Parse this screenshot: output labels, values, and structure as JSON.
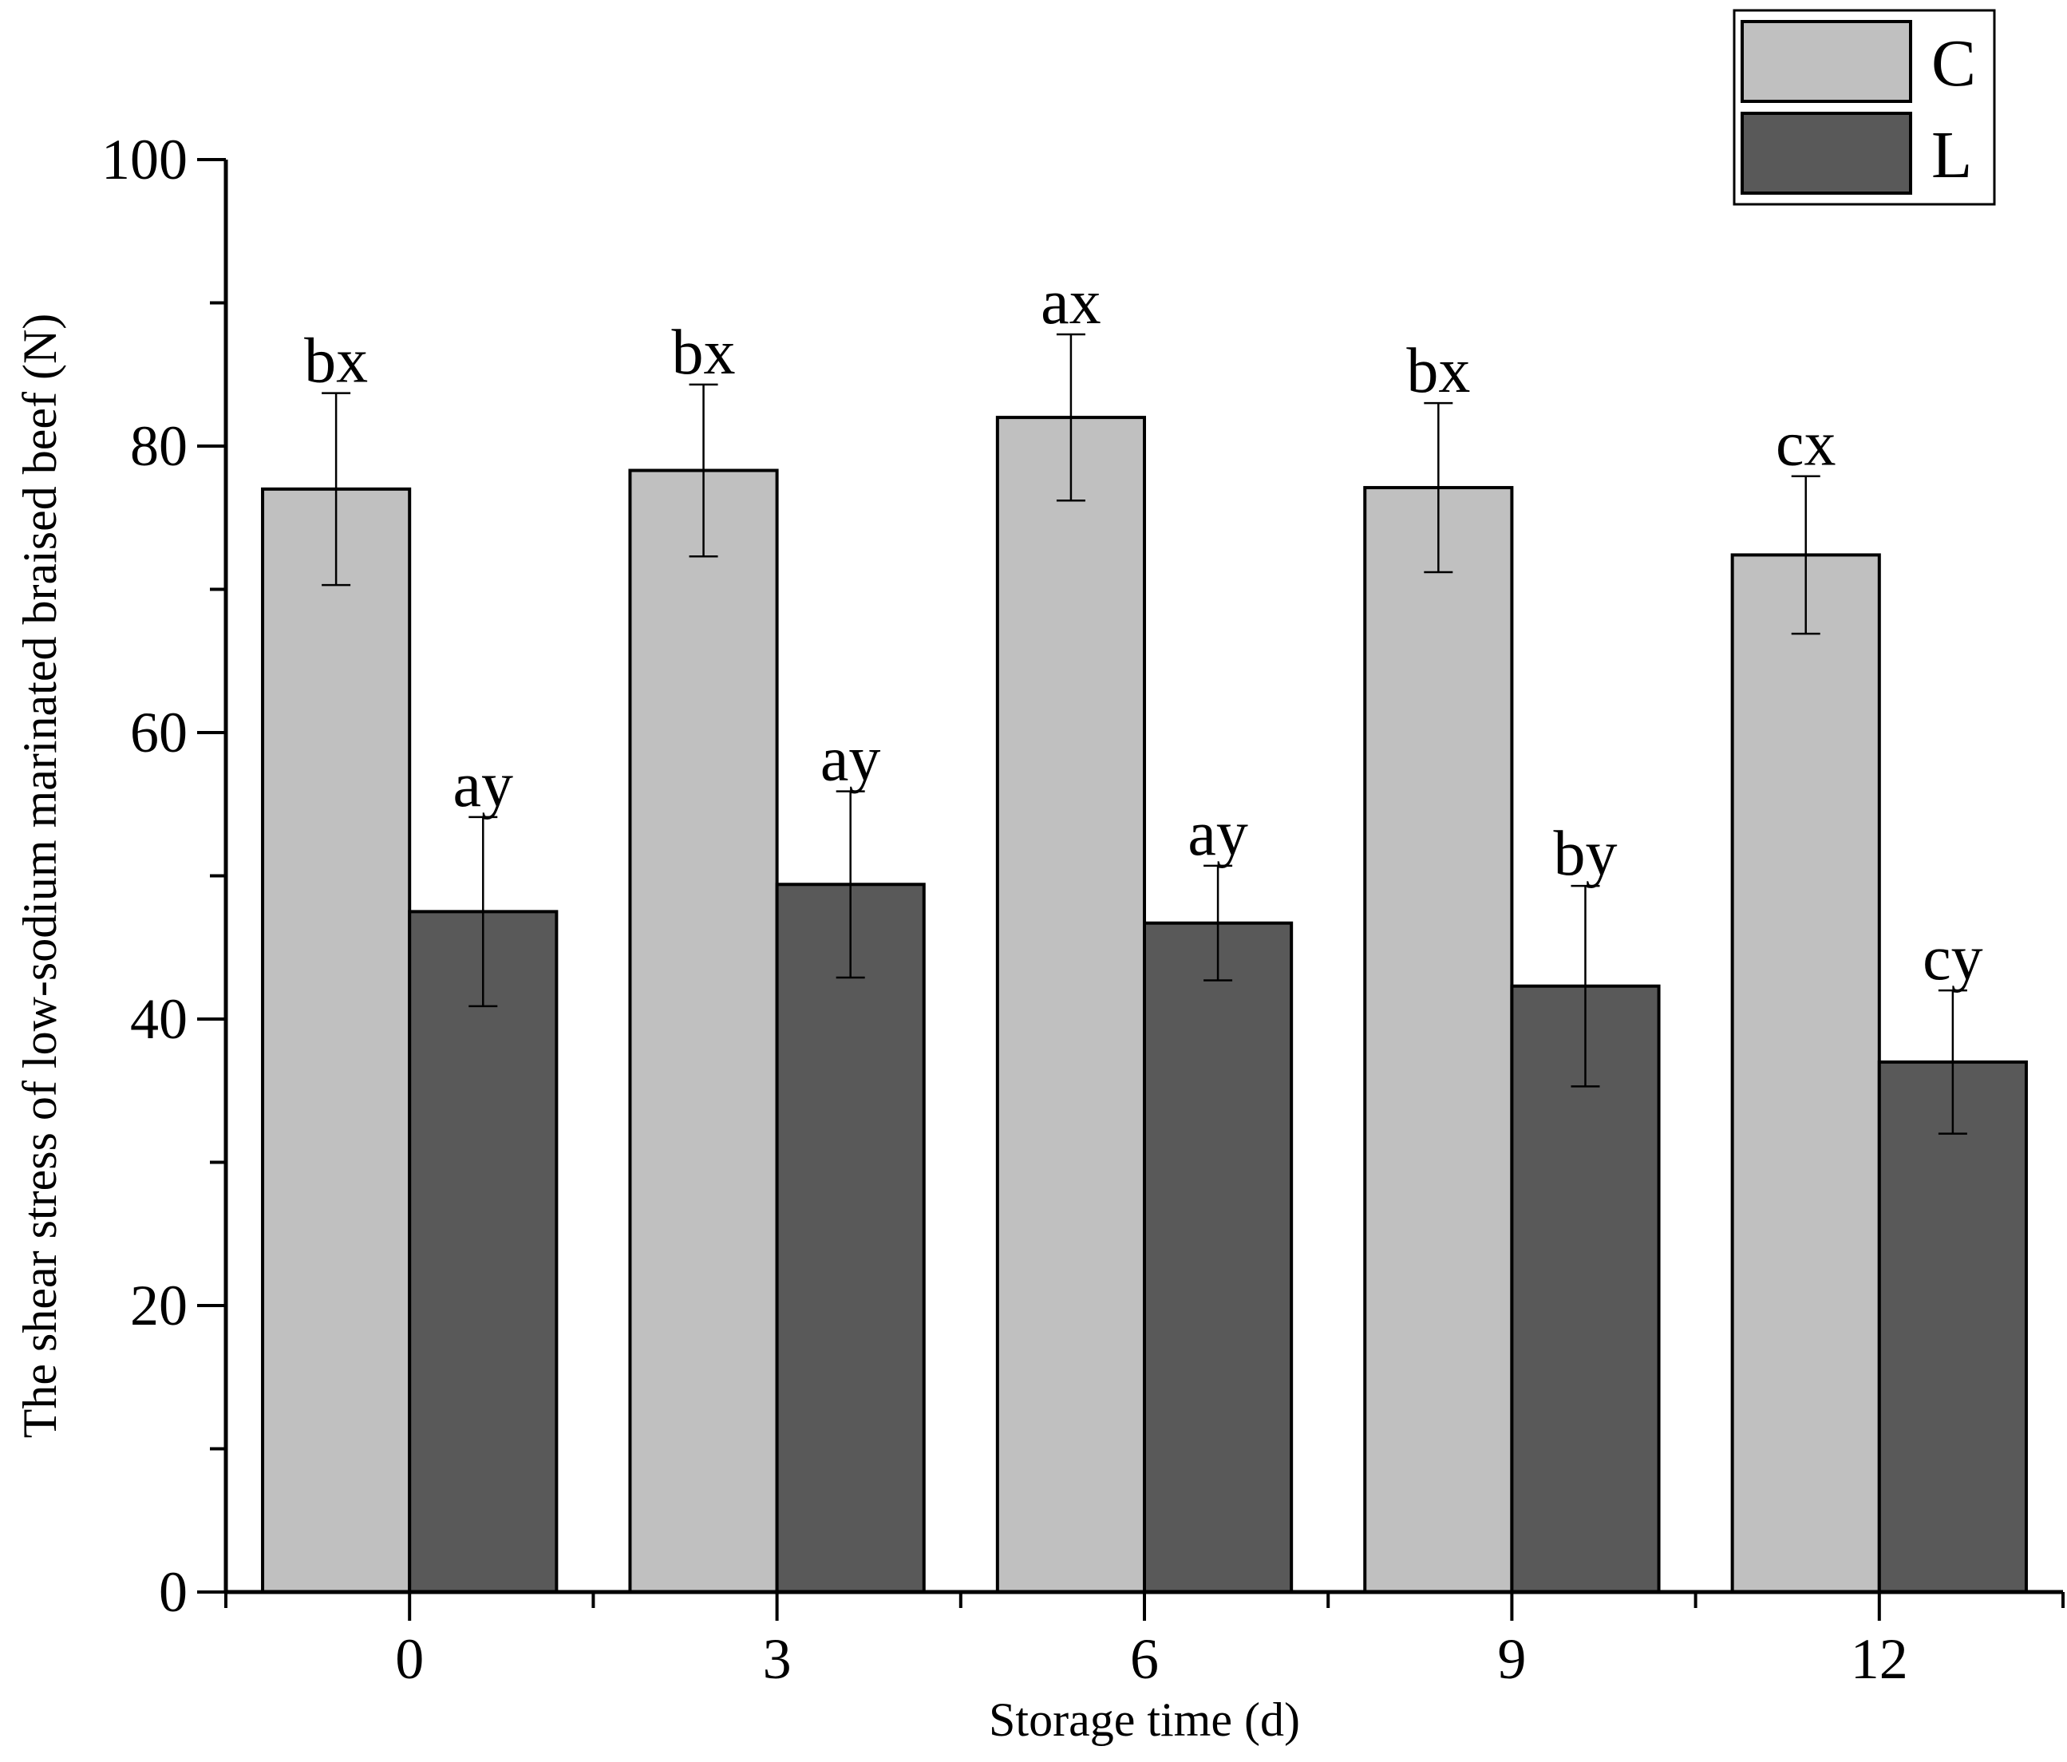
{
  "chart_data": {
    "type": "bar",
    "xlabel": "Storage time (d)",
    "ylabel": "The shear stress of low-sodium marinated braised beef (N)",
    "categories": [
      "0",
      "3",
      "6",
      "9",
      "12"
    ],
    "ylim": [
      0,
      100
    ],
    "yticks": [
      0,
      20,
      40,
      60,
      80,
      100
    ],
    "grid": false,
    "legend_position": "top-right",
    "series": [
      {
        "name": "C",
        "color": "#c0c0c0",
        "values": [
          77.0,
          78.3,
          82.0,
          77.1,
          72.4
        ],
        "errors": [
          6.7,
          6.0,
          5.8,
          5.9,
          5.5
        ],
        "labels": [
          "bx",
          "bx",
          "ax",
          "bx",
          "cx"
        ]
      },
      {
        "name": "L",
        "color": "#595959",
        "values": [
          47.5,
          49.4,
          46.7,
          42.3,
          37.0
        ],
        "errors": [
          6.6,
          6.5,
          4.0,
          7.0,
          5.0
        ],
        "labels": [
          "ay",
          "ay",
          "ay",
          "by",
          "cy"
        ]
      }
    ]
  }
}
